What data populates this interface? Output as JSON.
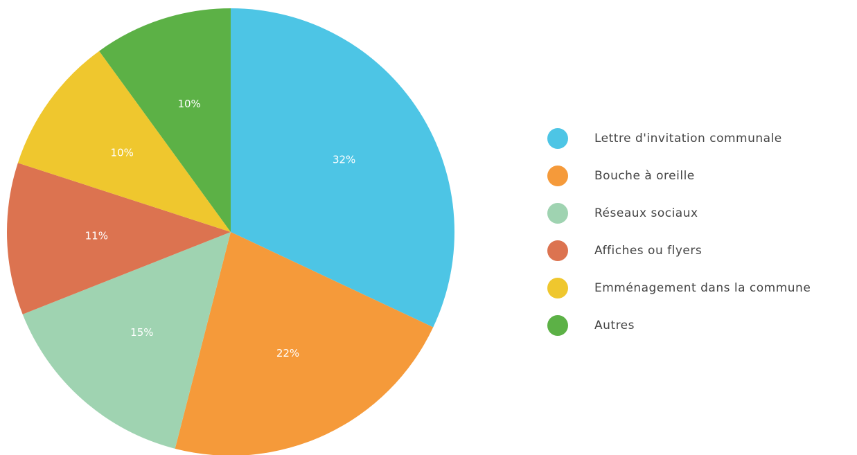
{
  "chart_data": {
    "type": "pie",
    "categories": [
      "Lettre d'invitation communale",
      "Bouche à oreille",
      "Réseaux sociaux",
      "Affiches ou flyers",
      "Emménagement dans la commune",
      "Autres"
    ],
    "values": [
      32,
      22,
      15,
      11,
      10,
      10
    ],
    "value_labels": [
      "32%",
      "22%",
      "15%",
      "11%",
      "10%",
      "10%"
    ],
    "colors": [
      "#4dc5e5",
      "#f59a3a",
      "#9fd3b1",
      "#dc7350",
      "#efc72e",
      "#5cb146"
    ],
    "legend": "right"
  }
}
